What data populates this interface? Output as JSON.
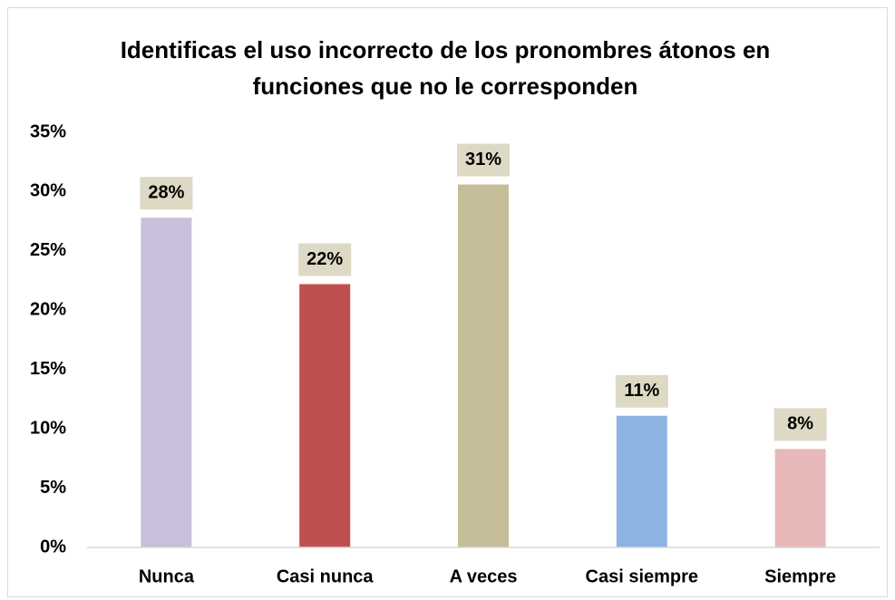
{
  "chart_data": {
    "type": "bar",
    "title": [
      "Identificas el uso incorrecto de los pronombres átonos en",
      "funciones que no le corresponden"
    ],
    "categories": [
      "Nunca",
      "Casi nunca",
      "A veces",
      "Casi siempre",
      "Siempre"
    ],
    "values": [
      27.8,
      22.2,
      30.6,
      11.1,
      8.3
    ],
    "value_labels": [
      "28%",
      "22%",
      "31%",
      "11%",
      "8%"
    ],
    "colors": [
      "#c9bfdb",
      "#c0504d",
      "#c4bd97",
      "#8db3e2",
      "#e6b9b8"
    ],
    "ylim": [
      0,
      35
    ],
    "yticks": [
      {
        "value": 0,
        "label": "0%"
      },
      {
        "value": 5,
        "label": "5%"
      },
      {
        "value": 10,
        "label": "10%"
      },
      {
        "value": 15,
        "label": "15%"
      },
      {
        "value": 20,
        "label": "20%"
      },
      {
        "value": 25,
        "label": "25%"
      },
      {
        "value": 30,
        "label": "30%"
      },
      {
        "value": 35,
        "label": "35%"
      }
    ],
    "grid": false
  }
}
